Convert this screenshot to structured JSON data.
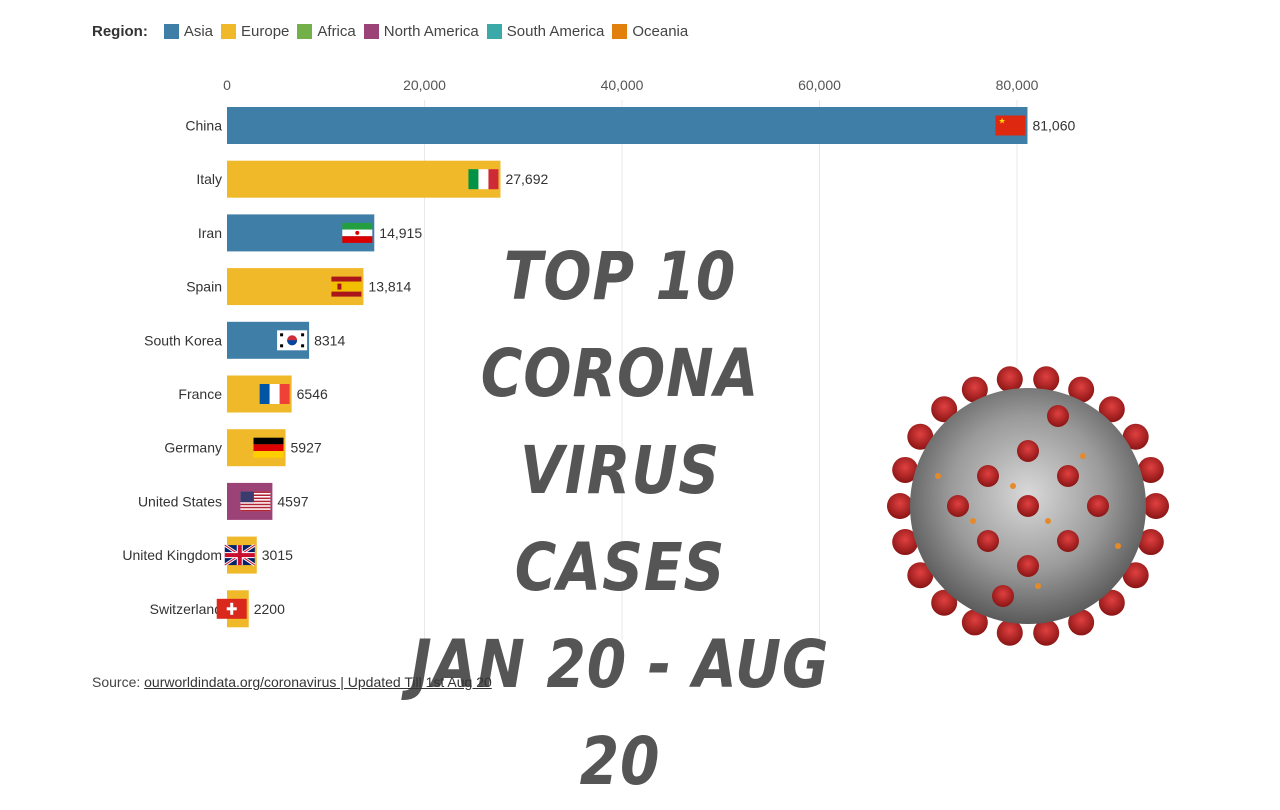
{
  "legend": {
    "title": "Region:",
    "items": [
      {
        "label": "Asia",
        "color": "#3f7ea6"
      },
      {
        "label": "Europe",
        "color": "#f0b92a"
      },
      {
        "label": "Africa",
        "color": "#73b04a"
      },
      {
        "label": "North America",
        "color": "#9b4377"
      },
      {
        "label": "South America",
        "color": "#3aa9a8"
      },
      {
        "label": "Oceania",
        "color": "#e2800e"
      }
    ]
  },
  "overlay": {
    "line1": "TOP 10",
    "line2": "CORONA VIRUS",
    "line3": "CASES",
    "line4": "JAN 20 - AUG 20"
  },
  "source": {
    "prefix": "Source: ",
    "link": "ourworldindata.org/coronavirus",
    "suffix": " | Updated Till 1st Aug 20"
  },
  "chart_data": {
    "type": "bar",
    "orientation": "horizontal",
    "xlim": [
      0,
      85000
    ],
    "xticks": [
      0,
      20000,
      40000,
      60000,
      80000
    ],
    "xtick_labels": [
      "0",
      "20,000",
      "40,000",
      "60,000",
      "80,000"
    ],
    "grid": true,
    "legend_position": "top-left",
    "categories": [
      "China",
      "Italy",
      "Iran",
      "Spain",
      "South Korea",
      "France",
      "Germany",
      "United States",
      "United Kingdom",
      "Switzerland"
    ],
    "values": [
      81060,
      27692,
      14915,
      13814,
      8314,
      6546,
      5927,
      4597,
      3015,
      2200
    ],
    "value_labels": [
      "81,060",
      "27,692",
      "14,915",
      "13,814",
      "8314",
      "6546",
      "5927",
      "4597",
      "3015",
      "2200"
    ],
    "regions": [
      "Asia",
      "Europe",
      "Asia",
      "Europe",
      "Asia",
      "Europe",
      "Europe",
      "North America",
      "Europe",
      "Europe"
    ],
    "flags": [
      "china-flag",
      "italy-flag",
      "iran-flag",
      "spain-flag",
      "south-korea-flag",
      "france-flag",
      "germany-flag",
      "usa-flag",
      "uk-flag",
      "switzerland-flag"
    ]
  }
}
